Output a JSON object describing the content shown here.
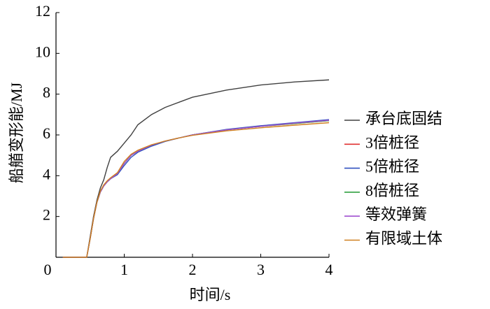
{
  "chart_data": {
    "type": "line",
    "x_label": "时间/s",
    "y_label": "船艏变形能/MJ",
    "x": [
      0.1,
      0.45,
      0.5,
      0.55,
      0.6,
      0.65,
      0.7,
      0.75,
      0.8,
      0.9,
      1.0,
      1.1,
      1.2,
      1.4,
      1.6,
      1.8,
      2.0,
      2.5,
      3.0,
      3.5,
      4.0
    ],
    "series": [
      {
        "name": "承台底固结",
        "color": "#404040",
        "values": [
          0,
          0,
          1.0,
          2.0,
          2.8,
          3.4,
          3.8,
          4.4,
          4.9,
          5.2,
          5.6,
          6.0,
          6.5,
          7.0,
          7.35,
          7.6,
          7.85,
          8.2,
          8.45,
          8.6,
          8.7
        ]
      },
      {
        "name": "3倍桩径",
        "color": "#e03030",
        "values": [
          0,
          0,
          0.9,
          1.9,
          2.7,
          3.2,
          3.5,
          3.7,
          3.85,
          4.1,
          4.6,
          5.0,
          5.2,
          5.5,
          5.7,
          5.85,
          6.0,
          6.25,
          6.42,
          6.56,
          6.7
        ]
      },
      {
        "name": "5倍桩径",
        "color": "#3050c0",
        "values": [
          0,
          0,
          0.9,
          1.9,
          2.7,
          3.2,
          3.5,
          3.7,
          3.85,
          4.05,
          4.5,
          4.9,
          5.15,
          5.45,
          5.68,
          5.85,
          6.0,
          6.27,
          6.45,
          6.6,
          6.75
        ]
      },
      {
        "name": "8倍桩径",
        "color": "#30a040",
        "values": [
          0,
          0,
          0.9,
          1.9,
          2.7,
          3.2,
          3.5,
          3.7,
          3.85,
          4.1,
          4.6,
          5.0,
          5.2,
          5.5,
          5.7,
          5.85,
          6.0,
          6.25,
          6.42,
          6.56,
          6.7
        ]
      },
      {
        "name": "等效弹簧",
        "color": "#a050d0",
        "values": [
          0,
          0,
          0.9,
          1.9,
          2.7,
          3.2,
          3.5,
          3.7,
          3.85,
          4.1,
          4.6,
          5.0,
          5.2,
          5.5,
          5.7,
          5.85,
          6.0,
          6.25,
          6.42,
          6.58,
          6.72
        ]
      },
      {
        "name": "有限域土体",
        "color": "#d08020",
        "values": [
          0,
          0,
          0.9,
          1.9,
          2.7,
          3.25,
          3.55,
          3.75,
          3.9,
          4.15,
          4.7,
          5.05,
          5.25,
          5.52,
          5.7,
          5.85,
          5.98,
          6.2,
          6.35,
          6.48,
          6.6
        ]
      }
    ],
    "xlim": [
      0,
      4
    ],
    "xticks": [
      0,
      1,
      2,
      3,
      4
    ],
    "ylim": [
      0,
      12
    ],
    "yticks": [
      2,
      4,
      6,
      8,
      10,
      12
    ]
  }
}
